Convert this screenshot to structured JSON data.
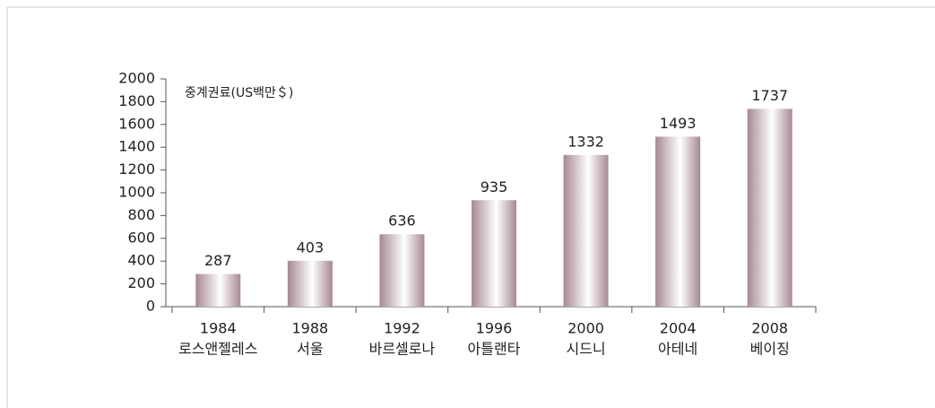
{
  "chart_data": {
    "type": "bar",
    "y_axis_label": "중계권료(US백만＄)",
    "categories": [
      "1984",
      "1988",
      "1992",
      "1996",
      "2000",
      "2004",
      "2008"
    ],
    "category_sublabels": [
      "로스앤젤레스",
      "서울",
      "바르셀로나",
      "아틀랜타",
      "시드니",
      "아테네",
      "베이징"
    ],
    "values": [
      287,
      403,
      636,
      935,
      1332,
      1493,
      1737
    ],
    "color": "#a68893",
    "ylim": [
      0,
      2000
    ],
    "yticks": [
      0,
      200,
      400,
      600,
      800,
      1000,
      1200,
      1400,
      1600,
      1800,
      2000
    ],
    "grid": false
  }
}
